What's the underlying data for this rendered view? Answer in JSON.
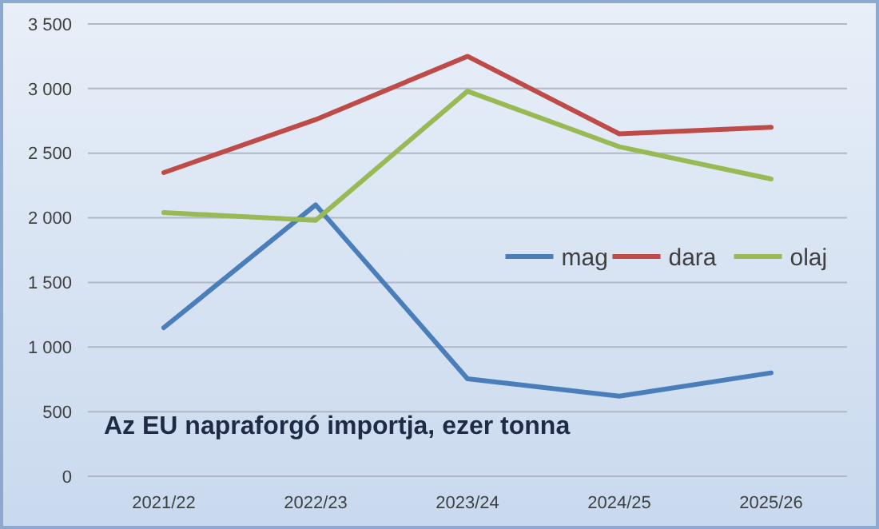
{
  "chart_data": {
    "type": "line",
    "title": "Az EU napraforgó  importja, ezer tonna",
    "categories": [
      "2021/22",
      "2022/23",
      "2023/24",
      "2024/25",
      "2025/26"
    ],
    "series": [
      {
        "name": "mag",
        "color": "#4a7ebb",
        "values": [
          1150,
          2100,
          755,
          620,
          800
        ]
      },
      {
        "name": "dara",
        "color": "#be4b48",
        "values": [
          2350,
          2760,
          3250,
          2650,
          2700
        ]
      },
      {
        "name": "olaj",
        "color": "#98b954",
        "values": [
          2040,
          1980,
          2980,
          2550,
          2300
        ]
      }
    ],
    "ylim": [
      0,
      3500
    ],
    "yticks": [
      0,
      500,
      {
        "value": 1000,
        "label": "1 000"
      },
      {
        "value": 1500,
        "label": "1 500"
      },
      {
        "value": 2000,
        "label": "2 000"
      },
      {
        "value": 2500,
        "label": "2 500"
      },
      {
        "value": 3000,
        "label": "3 000"
      },
      {
        "value": 3500,
        "label": "3 500"
      }
    ],
    "grid": "y",
    "legend": "right",
    "marker": "none",
    "line_style": "solid"
  }
}
